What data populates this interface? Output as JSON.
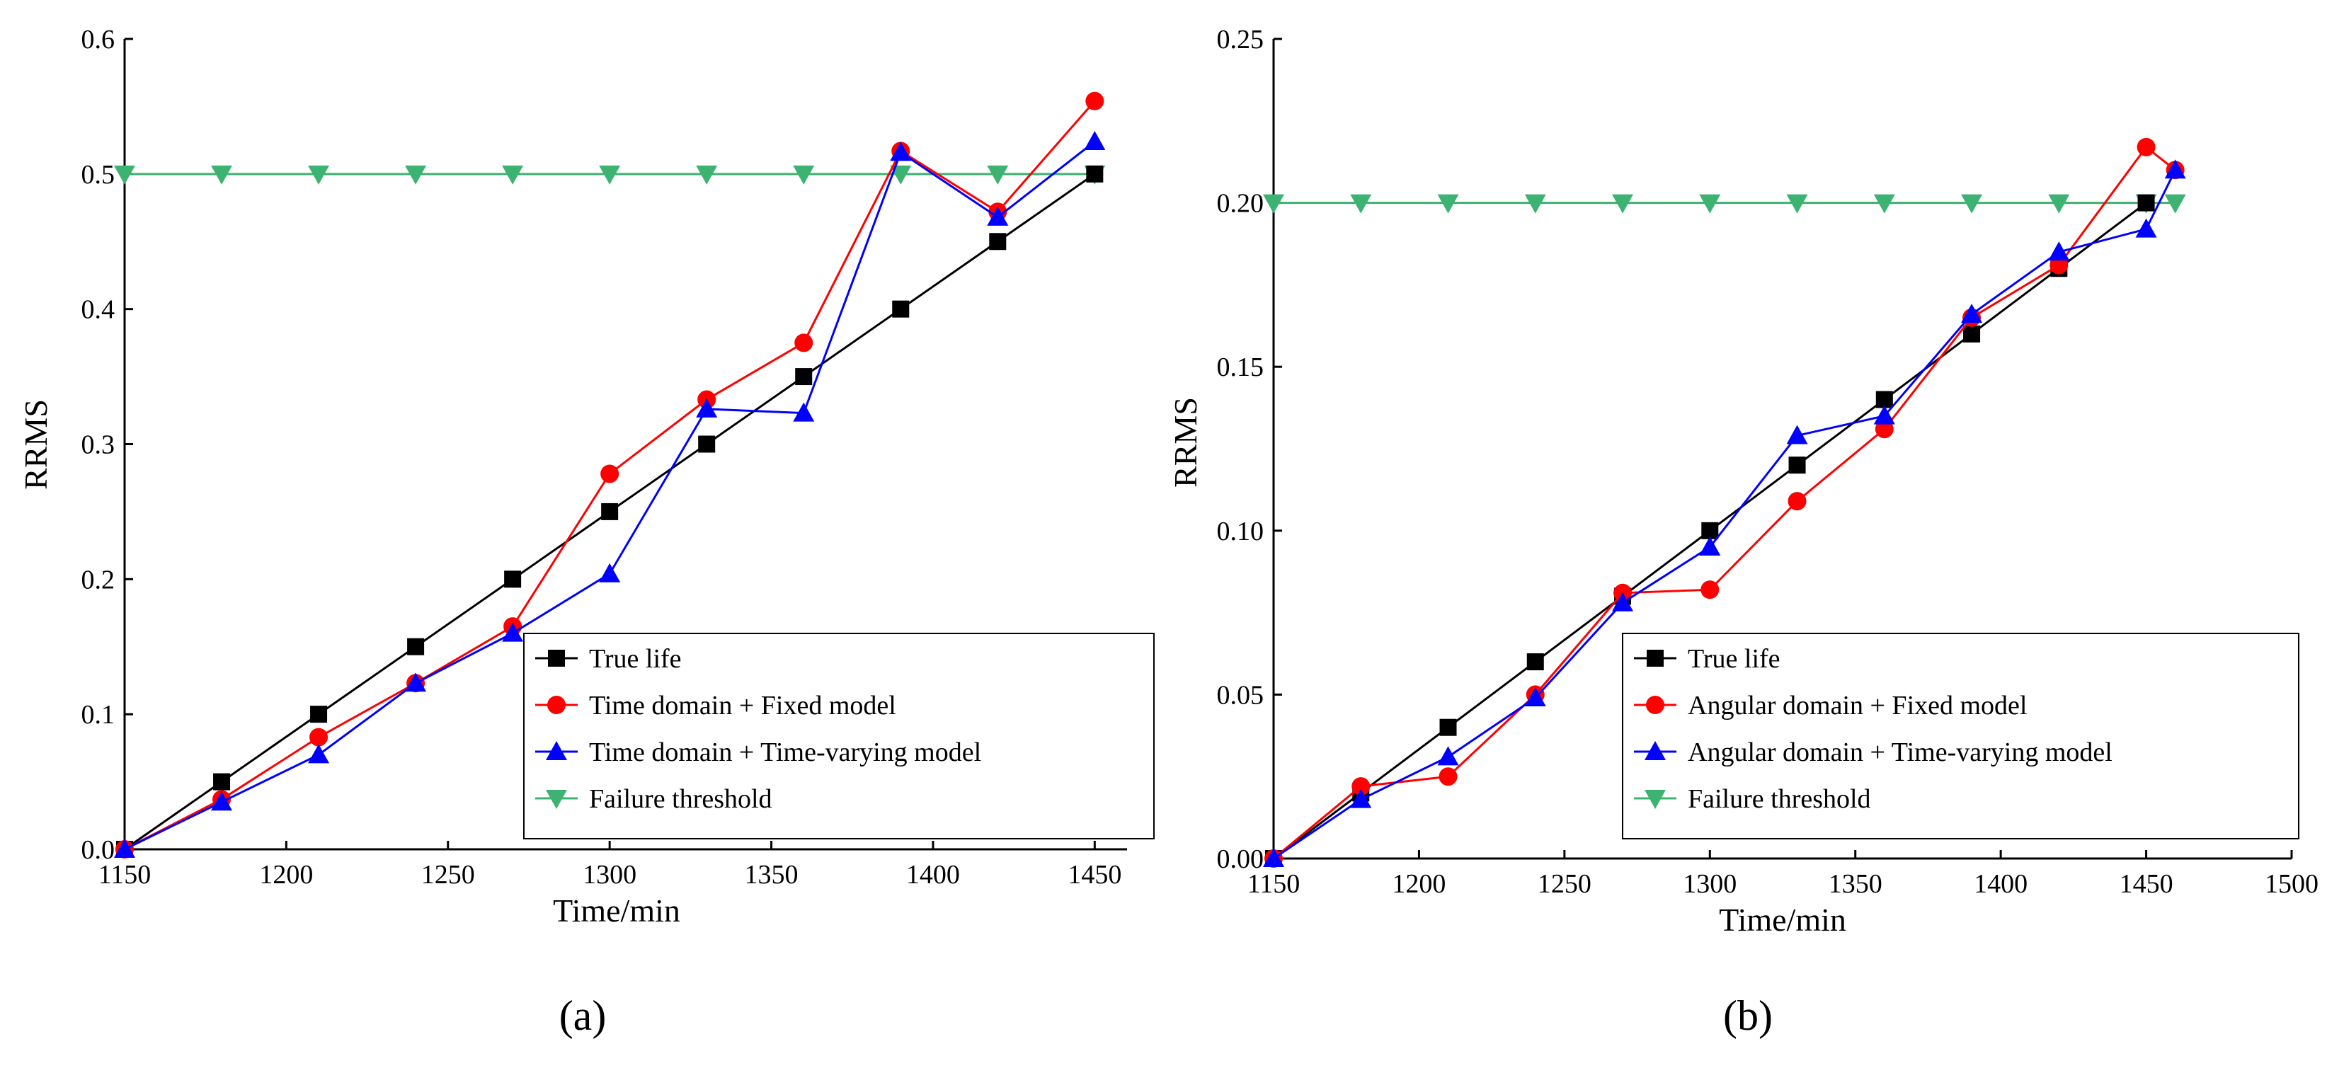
{
  "chart_data": [
    {
      "type": "line",
      "panel_label": "(a)",
      "xlabel": "Time/min",
      "ylabel": "RRMS",
      "xlim": [
        1150,
        1460
      ],
      "ylim": [
        0,
        0.6
      ],
      "xticks": [
        1150,
        1200,
        1250,
        1300,
        1350,
        1400,
        1450
      ],
      "xtick_labels": [
        "1150",
        "1200",
        "1250",
        "1300",
        "1350",
        "1400",
        "1450"
      ],
      "yticks": [
        0,
        0.1,
        0.2,
        0.3,
        0.4,
        0.5,
        0.6
      ],
      "ytick_labels": [
        "0.0",
        "0.1",
        "0.2",
        "0.3",
        "0.4",
        "0.5",
        "0.6"
      ],
      "legend_position": "bottom-right",
      "series": [
        {
          "name": "True life",
          "color": "#000000",
          "marker": "square",
          "x": [
            1150,
            1180,
            1210,
            1240,
            1270,
            1300,
            1330,
            1360,
            1390,
            1420,
            1450
          ],
          "y": [
            0,
            0.05,
            0.1,
            0.15,
            0.2,
            0.25,
            0.3,
            0.35,
            0.4,
            0.45,
            0.5
          ]
        },
        {
          "name": "Time domain + Fixed model",
          "color": "#ff0000",
          "marker": "circle",
          "x": [
            1150,
            1180,
            1210,
            1240,
            1270,
            1300,
            1330,
            1360,
            1390,
            1420,
            1450
          ],
          "y": [
            0,
            0.037,
            0.083,
            0.123,
            0.165,
            0.278,
            0.333,
            0.375,
            0.517,
            0.472,
            0.554
          ]
        },
        {
          "name": "Time domain + Time-varying model",
          "color": "#0000ff",
          "marker": "triangle-up",
          "x": [
            1150,
            1180,
            1210,
            1240,
            1270,
            1300,
            1330,
            1360,
            1390,
            1420,
            1450
          ],
          "y": [
            0,
            0.035,
            0.07,
            0.123,
            0.16,
            0.204,
            0.326,
            0.323,
            0.516,
            0.468,
            0.524
          ]
        },
        {
          "name": "Failure threshold",
          "color": "#3cb371",
          "marker": "triangle-down",
          "x": [
            1150,
            1180,
            1210,
            1240,
            1270,
            1300,
            1330,
            1360,
            1390,
            1420,
            1450
          ],
          "y": [
            0.5,
            0.5,
            0.5,
            0.5,
            0.5,
            0.5,
            0.5,
            0.5,
            0.5,
            0.5,
            0.5
          ]
        }
      ]
    },
    {
      "type": "line",
      "panel_label": "(b)",
      "xlabel": "Time/min",
      "ylabel": "RRMS",
      "xlim": [
        1150,
        1500
      ],
      "ylim": [
        0,
        0.25
      ],
      "xticks": [
        1150,
        1200,
        1250,
        1300,
        1350,
        1400,
        1450,
        1500
      ],
      "xtick_labels": [
        "1150",
        "1200",
        "1250",
        "1300",
        "1350",
        "1400",
        "1450",
        "1500"
      ],
      "yticks": [
        0,
        0.05,
        0.1,
        0.15,
        0.2,
        0.25
      ],
      "ytick_labels": [
        "0.00",
        "0.05",
        "0.10",
        "0.15",
        "0.20",
        "0.25"
      ],
      "legend_position": "bottom-right",
      "series": [
        {
          "name": "True life",
          "color": "#000000",
          "marker": "square",
          "x": [
            1150,
            1180,
            1210,
            1240,
            1270,
            1300,
            1330,
            1360,
            1390,
            1420,
            1450
          ],
          "y": [
            0,
            0.02,
            0.04,
            0.06,
            0.08,
            0.1,
            0.12,
            0.14,
            0.16,
            0.18,
            0.2
          ]
        },
        {
          "name": "Angular domain + Fixed model",
          "color": "#ff0000",
          "marker": "circle",
          "x": [
            1150,
            1180,
            1210,
            1240,
            1270,
            1300,
            1330,
            1360,
            1390,
            1420,
            1450,
            1460
          ],
          "y": [
            0,
            0.022,
            0.025,
            0.05,
            0.081,
            0.082,
            0.109,
            0.131,
            0.165,
            0.181,
            0.217,
            0.21
          ]
        },
        {
          "name": "Angular domain + Time-varying model",
          "color": "#0000ff",
          "marker": "triangle-up",
          "x": [
            1150,
            1180,
            1210,
            1240,
            1270,
            1300,
            1330,
            1360,
            1390,
            1420,
            1450,
            1460
          ],
          "y": [
            0,
            0.018,
            0.031,
            0.049,
            0.078,
            0.095,
            0.129,
            0.135,
            0.166,
            0.185,
            0.192,
            0.21
          ]
        },
        {
          "name": "Failure threshold",
          "color": "#3cb371",
          "marker": "triangle-down",
          "x": [
            1150,
            1180,
            1210,
            1240,
            1270,
            1300,
            1330,
            1360,
            1390,
            1420,
            1450,
            1460
          ],
          "y": [
            0.2,
            0.2,
            0.2,
            0.2,
            0.2,
            0.2,
            0.2,
            0.2,
            0.2,
            0.2,
            0.2,
            0.2
          ]
        }
      ]
    }
  ]
}
